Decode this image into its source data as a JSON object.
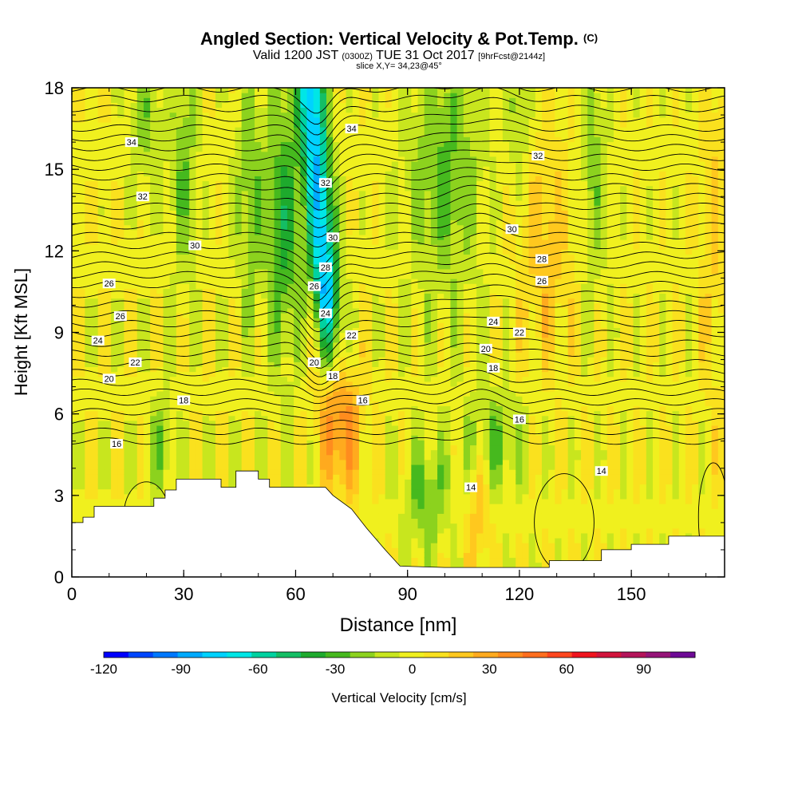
{
  "header": {
    "title": "Angled Section: Vertical Velocity & Pot.Temp.",
    "title_units": "(C)",
    "valid_prefix": "Valid 1200 JST",
    "valid_utc": "(0300Z)",
    "valid_date": "TUE 31 Oct 2017",
    "forecast": "[9hrFcst@2144z]",
    "slice": "slice X,Y= 34,23@45°"
  },
  "chart_data": {
    "type": "heatmap",
    "title": "Angled Section: Vertical Velocity & Pot.Temp. (C)",
    "xlabel": "Distance [nm]",
    "ylabel": "Height [Kft MSL]",
    "xlim": [
      0,
      175
    ],
    "ylim": [
      0,
      18
    ],
    "xticks": [
      "0",
      "30",
      "60",
      "90",
      "120",
      "150"
    ],
    "yticks": [
      "0",
      "3",
      "6",
      "9",
      "12",
      "15",
      "18"
    ],
    "colorbar": {
      "label": "Vertical Velocity [cm/s]",
      "range": [
        -120,
        110
      ],
      "step": 10,
      "ticks": [
        "-120",
        "-90",
        "-60",
        "-30",
        "0",
        "30",
        "60",
        "90"
      ],
      "colors": [
        "#0000ff",
        "#0046ff",
        "#0078ff",
        "#00aaff",
        "#00d2ff",
        "#00e6e6",
        "#00d2a0",
        "#14be64",
        "#1eaa2d",
        "#46b91e",
        "#8cd21e",
        "#c8e61e",
        "#f0f01e",
        "#fae11e",
        "#ffc81e",
        "#ffaa1e",
        "#ff8c1e",
        "#ff6e1e",
        "#ff461e",
        "#f0141e",
        "#d2143c",
        "#b4145a",
        "#961478",
        "#6e0a96"
      ]
    },
    "theta_contour_labels": [
      {
        "x": 12,
        "y": 4.9,
        "text": "16"
      },
      {
        "x": 30,
        "y": 6.5,
        "text": "18"
      },
      {
        "x": 10,
        "y": 7.3,
        "text": "20"
      },
      {
        "x": 17,
        "y": 7.9,
        "text": "22"
      },
      {
        "x": 7,
        "y": 8.7,
        "text": "24"
      },
      {
        "x": 13,
        "y": 9.6,
        "text": "26"
      },
      {
        "x": 10,
        "y": 10.8,
        "text": "26"
      },
      {
        "x": 33,
        "y": 12.2,
        "text": "30"
      },
      {
        "x": 19,
        "y": 14.0,
        "text": "32"
      },
      {
        "x": 16,
        "y": 16.0,
        "text": "34"
      },
      {
        "x": 75,
        "y": 16.5,
        "text": "34"
      },
      {
        "x": 68,
        "y": 14.5,
        "text": "32"
      },
      {
        "x": 70,
        "y": 12.5,
        "text": "30"
      },
      {
        "x": 68,
        "y": 11.4,
        "text": "28"
      },
      {
        "x": 65,
        "y": 10.7,
        "text": "26"
      },
      {
        "x": 68,
        "y": 9.7,
        "text": "24"
      },
      {
        "x": 75,
        "y": 8.9,
        "text": "22"
      },
      {
        "x": 65,
        "y": 7.9,
        "text": "20"
      },
      {
        "x": 70,
        "y": 7.4,
        "text": "18"
      },
      {
        "x": 78,
        "y": 6.5,
        "text": "16"
      },
      {
        "x": 125,
        "y": 15.5,
        "text": "32"
      },
      {
        "x": 118,
        "y": 12.8,
        "text": "30"
      },
      {
        "x": 126,
        "y": 11.7,
        "text": "28"
      },
      {
        "x": 126,
        "y": 10.9,
        "text": "26"
      },
      {
        "x": 113,
        "y": 9.4,
        "text": "24"
      },
      {
        "x": 120,
        "y": 9.0,
        "text": "22"
      },
      {
        "x": 111,
        "y": 8.4,
        "text": "20"
      },
      {
        "x": 113,
        "y": 7.7,
        "text": "18"
      },
      {
        "x": 120,
        "y": 5.8,
        "text": "16"
      },
      {
        "x": 107,
        "y": 3.3,
        "text": "14"
      },
      {
        "x": 142,
        "y": 3.9,
        "text": "14"
      }
    ]
  }
}
